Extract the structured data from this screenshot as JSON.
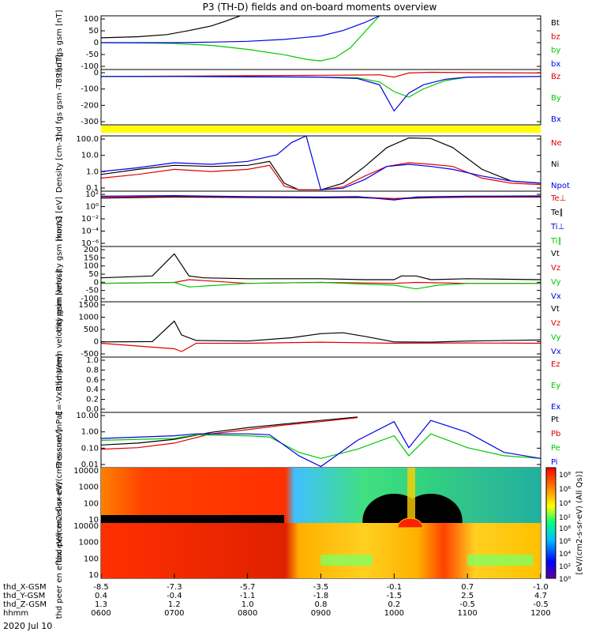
{
  "title": "P3 (TH-D) fields and on-board moments overview",
  "date_label": "2020 Jul 10",
  "colors": {
    "black": "#000000",
    "red": "#e00000",
    "green": "#00c800",
    "blue": "#0000e6",
    "yellow": "#ffff00"
  },
  "panels": [
    {
      "id": "fgs-gsm",
      "ylabel": "thd fgs gsm [nT]",
      "ticks": [
        "100",
        "50",
        "0",
        "-50",
        "-100"
      ],
      "legend": [
        {
          "text": "Bt",
          "color": "#000000"
        },
        {
          "text": "bz",
          "color": "#e00000"
        },
        {
          "text": "by",
          "color": "#00c800"
        },
        {
          "text": "bx",
          "color": "#0000e6"
        }
      ]
    },
    {
      "id": "fgs-gsm-t89",
      "ylabel": "thd fgs gsm -T89 [nT]",
      "ticks": [
        "0",
        "-100",
        "-200",
        "-300"
      ],
      "legend": [
        {
          "text": "Bz",
          "color": "#e00000"
        },
        {
          "text": "By",
          "color": "#00c800"
        },
        {
          "text": "Bx",
          "color": "#0000e6"
        }
      ]
    },
    {
      "id": "density",
      "ylabel": "Density [cm-3]",
      "ticks": [
        "100.0",
        "10.0",
        "1.0",
        "0.1"
      ],
      "legend": [
        {
          "text": "Ne",
          "color": "#e00000"
        },
        {
          "text": "Ni",
          "color": "#000000"
        },
        {
          "text": "Npot",
          "color": "#0000e6"
        }
      ]
    },
    {
      "id": "temperature",
      "ylabel": "mom3 [eV]",
      "ticks": [
        "10²",
        "10⁰",
        "10⁻²",
        "10⁻⁴",
        "10⁻⁶"
      ],
      "legend": [
        {
          "text": "Te⊥",
          "color": "#e00000"
        },
        {
          "text": "Te∥",
          "color": "#000000"
        },
        {
          "text": "Ti⊥",
          "color": "#0000e6"
        },
        {
          "text": "Ti∥",
          "color": "#00c800"
        }
      ]
    },
    {
      "id": "peim-velocity",
      "ylabel": "thd peim velocity gsm [km/s]",
      "ticks": [
        "200",
        "150",
        "100",
        "50",
        "0",
        "-50",
        "-100"
      ],
      "legend": [
        {
          "text": "Vt",
          "color": "#000000"
        },
        {
          "text": "Vz",
          "color": "#e00000"
        },
        {
          "text": "Vy",
          "color": "#00c800"
        },
        {
          "text": "Vx",
          "color": "#0000e6"
        }
      ]
    },
    {
      "id": "peem-velocity",
      "ylabel": "thd peem velocity gsm [km/s]",
      "ticks": [
        "1500",
        "1000",
        "500",
        "0",
        "-500"
      ],
      "legend": [
        {
          "text": "Vt",
          "color": "#000000"
        },
        {
          "text": "Vz",
          "color": "#e00000"
        },
        {
          "text": "Vy",
          "color": "#00c800"
        },
        {
          "text": "Vx",
          "color": "#0000e6"
        }
      ]
    },
    {
      "id": "efield",
      "ylabel": "E=-VxB [mV/m]",
      "ticks": [
        "1.0",
        "0.8",
        "0.6",
        "0.4",
        "0.2",
        "0.0"
      ],
      "legend": [
        {
          "text": "Ez",
          "color": "#e00000"
        },
        {
          "text": "Ey",
          "color": "#00c800"
        },
        {
          "text": "Ex",
          "color": "#0000e6"
        }
      ]
    },
    {
      "id": "pressure",
      "ylabel": "Pressure [nPa]",
      "ticks": [
        "10.00",
        "1.00",
        "0.10",
        "0.01"
      ],
      "legend": [
        {
          "text": "Pt",
          "color": "#000000"
        },
        {
          "text": "Pb",
          "color": "#e00000"
        },
        {
          "text": "Pe",
          "color": "#00c800"
        },
        {
          "text": "Pi",
          "color": "#0000e6"
        }
      ]
    },
    {
      "id": "peir",
      "ylabel": "thd peir en eflux eV/(cm2-s-sr-eV)",
      "ticks": [
        "10000",
        "1000",
        "100",
        "10"
      ],
      "legend": []
    },
    {
      "id": "peer",
      "ylabel": "thd peer en eflux eV/(cm2-s-sr-eV)",
      "ticks": [
        "10000",
        "1000",
        "100",
        "10"
      ],
      "legend": []
    }
  ],
  "colorbar": {
    "label": "[eV/(cm2-s-sr-eV) (All Qs)]",
    "top_ticks": [
      "10⁸",
      "10⁶",
      "10⁴",
      "10²"
    ],
    "bottom_ticks": [
      "10⁸",
      "10⁶",
      "10⁴",
      "10²",
      "10⁰"
    ]
  },
  "xaxis": {
    "rows": [
      {
        "label": "thd_X-GSM",
        "values": [
          "-8.5",
          "-7.3",
          "-5.7",
          "-3.5",
          "-0.1",
          "0.7",
          "-1.0"
        ]
      },
      {
        "label": "thd_Y-GSM",
        "values": [
          "0.4",
          "-0.4",
          "-1.1",
          "-1.8",
          "-1.5",
          "2.5",
          "4.7"
        ]
      },
      {
        "label": "thd_Z-GSM",
        "values": [
          "1.3",
          "1.2",
          "1.0",
          "0.8",
          "0.2",
          "-0.5",
          "-0.5"
        ]
      },
      {
        "label": "hhmm",
        "values": [
          "0600",
          "0700",
          "0800",
          "0900",
          "1000",
          "1100",
          "1200"
        ]
      }
    ]
  },
  "chart_data": {
    "type": "line",
    "x_hours": [
      6,
      7,
      8,
      9,
      10,
      11,
      12
    ],
    "panels": [
      {
        "id": "fgs-gsm",
        "ylim": [
          -100,
          100
        ],
        "scale": "linear",
        "series": [
          {
            "name": "Bt",
            "color": "#000000",
            "x": [
              6.0,
              6.5,
              6.9,
              7.2,
              7.5,
              7.7,
              7.9
            ],
            "y": [
              18,
              22,
              30,
              45,
              62,
              80,
              100
            ]
          },
          {
            "name": "by",
            "color": "#00c800",
            "x": [
              6.0,
              6.5,
              7.0,
              7.5,
              8.0,
              8.5,
              8.8,
              9.0,
              9.2,
              9.4,
              9.6,
              9.8
            ],
            "y": [
              0,
              -1,
              -3,
              -10,
              -25,
              -45,
              -62,
              -68,
              -55,
              -20,
              40,
              100
            ]
          },
          {
            "name": "bx",
            "color": "#0000e6",
            "x": [
              6.0,
              7.0,
              7.5,
              8.0,
              8.5,
              9.0,
              9.3,
              9.6,
              9.8
            ],
            "y": [
              0,
              0,
              2,
              5,
              12,
              25,
              45,
              75,
              100
            ]
          }
        ]
      },
      {
        "id": "fgs-gsm-t89",
        "ylim": [
          -350,
          50
        ],
        "scale": "linear",
        "series": [
          {
            "name": "Bz",
            "color": "#e00000",
            "x": [
              6.0,
              7.0,
              8.0,
              9.0,
              9.5,
              9.8,
              10.0,
              10.2,
              10.5,
              11.0,
              12.0
            ],
            "y": [
              0,
              2,
              5,
              8,
              10,
              12,
              -5,
              25,
              30,
              28,
              25
            ]
          },
          {
            "name": "By",
            "color": "#00c800",
            "x": [
              6.0,
              7.0,
              8.0,
              9.0,
              9.5,
              9.8,
              10.0,
              10.2,
              10.4,
              10.7,
              11.0,
              12.0
            ],
            "y": [
              0,
              0,
              -3,
              -5,
              -10,
              -40,
              -110,
              -150,
              -90,
              -30,
              -5,
              0
            ]
          },
          {
            "name": "Bx",
            "color": "#0000e6",
            "x": [
              6.0,
              7.0,
              8.0,
              9.0,
              9.5,
              9.8,
              10.0,
              10.2,
              10.4,
              10.7,
              11.0,
              12.0
            ],
            "y": [
              0,
              0,
              -2,
              -5,
              -15,
              -60,
              -250,
              -120,
              -60,
              -20,
              -5,
              0
            ]
          }
        ]
      },
      {
        "id": "density",
        "ylim": [
          0.1,
          200
        ],
        "scale": "log",
        "series": [
          {
            "name": "Ni",
            "color": "#000000",
            "x": [
              6.0,
              6.5,
              7.0,
              7.5,
              8.0,
              8.3,
              8.5,
              8.7,
              9.0,
              9.3,
              9.6,
              9.9,
              10.2,
              10.5,
              10.8,
              11.2,
              11.6,
              12.0
            ],
            "y": [
              1.0,
              2.0,
              3.5,
              3.0,
              3.5,
              6.0,
              0.3,
              0.12,
              0.12,
              0.3,
              3.0,
              40,
              150,
              140,
              40,
              2,
              0.4,
              0.3
            ]
          },
          {
            "name": "Ne",
            "color": "#e00000",
            "x": [
              6.0,
              6.5,
              7.0,
              7.5,
              8.0,
              8.3,
              8.5,
              8.7,
              9.0,
              9.3,
              9.6,
              9.9,
              10.2,
              10.5,
              10.8,
              11.2,
              11.6,
              12.0
            ],
            "y": [
              0.6,
              1.0,
              2.0,
              1.5,
              2.0,
              3.5,
              0.2,
              0.12,
              0.12,
              0.18,
              0.8,
              3,
              5,
              4,
              3,
              0.6,
              0.3,
              0.25
            ]
          },
          {
            "name": "Npot",
            "color": "#0000e6",
            "x": [
              6.0,
              6.5,
              7.0,
              7.5,
              8.0,
              8.4,
              8.6,
              8.8,
              9.0,
              9.3,
              9.6,
              9.9,
              10.2,
              10.5,
              10.8,
              11.2,
              11.6,
              12.0
            ],
            "y": [
              1.5,
              2.5,
              5,
              4,
              6,
              15,
              80,
              200,
              0.12,
              0.15,
              0.5,
              3,
              4,
              3,
              2,
              0.8,
              0.4,
              0.3
            ]
          }
        ]
      },
      {
        "id": "temperature",
        "ylim": [
          1e-06,
          500
        ],
        "scale": "log",
        "series": [
          {
            "name": "Te∥",
            "color": "#000000",
            "x": [
              6.0,
              7.0,
              8.0,
              9.0,
              9.5,
              10.0,
              10.3,
              10.6,
              11.0,
              12.0
            ],
            "y": [
              40,
              60,
              50,
              45,
              50,
              30,
              40,
              50,
              55,
              60
            ]
          },
          {
            "name": "Te⊥",
            "color": "#e00000",
            "x": [
              6.0,
              7.0,
              8.0,
              9.0,
              9.5,
              10.0,
              10.3,
              10.6,
              11.0,
              12.0
            ],
            "y": [
              50,
              80,
              60,
              55,
              60,
              35,
              50,
              60,
              65,
              70
            ]
          },
          {
            "name": "Ti⊥",
            "color": "#0000e6",
            "x": [
              6.0,
              7.0,
              8.0,
              9.0,
              9.5,
              10.0,
              10.3,
              10.6,
              11.0,
              12.0
            ],
            "y": [
              80,
              100,
              70,
              60,
              70,
              20,
              60,
              70,
              80,
              90
            ]
          }
        ]
      },
      {
        "id": "peim-velocity",
        "ylim": [
          -100,
          200
        ],
        "scale": "linear",
        "series": [
          {
            "name": "Vt",
            "color": "#000000",
            "x": [
              6.0,
              6.7,
              7.0,
              7.2,
              7.4,
              8.0,
              9.0,
              9.6,
              10.0,
              10.1,
              10.3,
              10.5,
              11.0,
              12.0
            ],
            "y": [
              30,
              40,
              160,
              40,
              30,
              25,
              25,
              20,
              20,
              40,
              40,
              20,
              25,
              20
            ]
          },
          {
            "name": "Vz",
            "color": "#e00000",
            "x": [
              6.0,
              7.0,
              7.2,
              8.0,
              9.0,
              10.0,
              10.3,
              11.0,
              12.0
            ],
            "y": [
              0,
              5,
              20,
              0,
              5,
              0,
              5,
              0,
              0
            ]
          },
          {
            "name": "Vy",
            "color": "#00c800",
            "x": [
              6.0,
              7.0,
              7.2,
              8.0,
              9.0,
              10.0,
              10.3,
              10.6,
              11.0,
              12.0
            ],
            "y": [
              0,
              5,
              -20,
              0,
              5,
              -10,
              -30,
              -10,
              0,
              0
            ]
          }
        ]
      },
      {
        "id": "peem-velocity",
        "ylim": [
          -500,
          1500
        ],
        "scale": "linear",
        "series": [
          {
            "name": "Vt",
            "color": "#000000",
            "x": [
              6.0,
              6.7,
              7.0,
              7.1,
              7.3,
              8.0,
              8.6,
              9.0,
              9.3,
              9.6,
              10.0,
              10.5,
              11.0,
              12.0
            ],
            "y": [
              50,
              60,
              800,
              300,
              100,
              80,
              200,
              350,
              380,
              250,
              50,
              40,
              80,
              120
            ]
          },
          {
            "name": "Vz",
            "color": "#e00000",
            "x": [
              6.0,
              7.0,
              7.1,
              7.3,
              8.0,
              9.0,
              10.0,
              11.0,
              12.0
            ],
            "y": [
              0,
              -200,
              -300,
              0,
              0,
              40,
              0,
              10,
              0
            ]
          }
        ]
      },
      {
        "id": "efield",
        "ylim": [
          0,
          1
        ],
        "scale": "linear",
        "series": []
      },
      {
        "id": "pressure",
        "ylim": [
          0.005,
          20
        ],
        "scale": "log",
        "series": [
          {
            "name": "Pt",
            "color": "#000000",
            "x": [
              6.0,
              6.5,
              7.0,
              7.5,
              8.0,
              8.5,
              9.0,
              9.5
            ],
            "y": [
              0.15,
              0.2,
              0.35,
              1.0,
              2.0,
              3.5,
              6,
              10
            ]
          },
          {
            "name": "Pb",
            "color": "#e00000",
            "x": [
              6.0,
              6.5,
              7.0,
              7.5,
              8.0,
              8.5,
              9.0,
              9.5
            ],
            "y": [
              0.08,
              0.1,
              0.2,
              0.8,
              1.5,
              3,
              5,
              9
            ]
          },
          {
            "name": "Pe",
            "color": "#00c800",
            "x": [
              6.0,
              7.0,
              7.3,
              8.0,
              8.3,
              8.7,
              9.0,
              9.5,
              10.0,
              10.2,
              10.5,
              11.0,
              11.5,
              12.0
            ],
            "y": [
              0.3,
              0.4,
              0.7,
              0.6,
              0.5,
              0.05,
              0.02,
              0.08,
              0.6,
              0.03,
              0.8,
              0.1,
              0.03,
              0.02
            ]
          },
          {
            "name": "Pi",
            "color": "#0000e6",
            "x": [
              6.0,
              7.0,
              7.3,
              8.0,
              8.3,
              8.7,
              9.0,
              9.5,
              10.0,
              10.2,
              10.5,
              11.0,
              11.5,
              12.0
            ],
            "y": [
              0.4,
              0.6,
              0.8,
              0.8,
              0.7,
              0.03,
              0.006,
              0.3,
              5,
              0.1,
              6,
              1.0,
              0.05,
              0.02
            ]
          }
        ]
      }
    ]
  }
}
